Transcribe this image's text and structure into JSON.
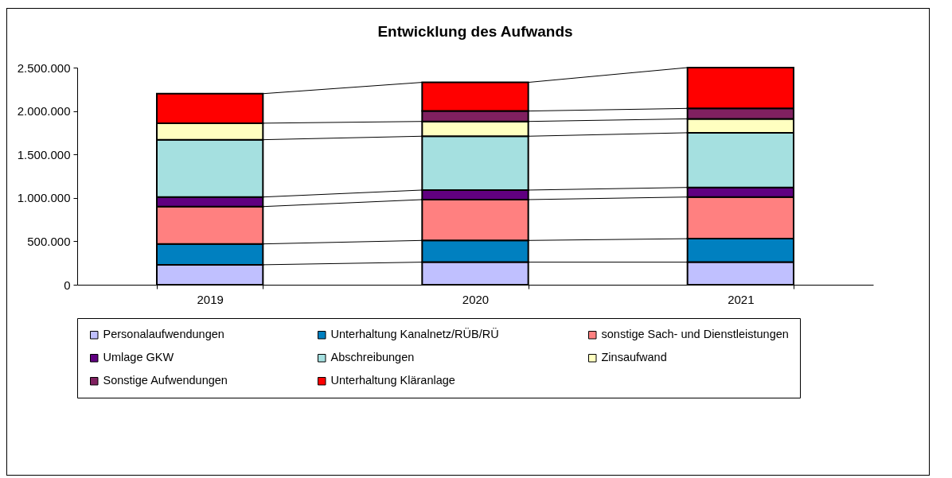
{
  "chart_data": {
    "type": "bar",
    "title": "Entwicklung des Aufwands",
    "stacked": true,
    "categories": [
      "2019",
      "2020",
      "2021"
    ],
    "series": [
      {
        "name": "Personalaufwendungen",
        "color": "#c0c0ff",
        "values": [
          230000,
          260000,
          260000
        ]
      },
      {
        "name": "Unterhaltung Kanalnetz/RÜB/RÜ",
        "color": "#0080c0",
        "values": [
          240000,
          250000,
          270000
        ]
      },
      {
        "name": "sonstige Sach- und Dienstleistungen",
        "color": "#ff8080",
        "values": [
          430000,
          470000,
          480000
        ]
      },
      {
        "name": "Umlage GKW",
        "color": "#600080",
        "values": [
          110000,
          110000,
          110000
        ]
      },
      {
        "name": "Abschreibungen",
        "color": "#a5e0e0",
        "values": [
          660000,
          620000,
          630000
        ]
      },
      {
        "name": "Zinsaufwand",
        "color": "#ffffc0",
        "values": [
          190000,
          170000,
          160000
        ]
      },
      {
        "name": "Sonstige Aufwendungen",
        "color": "#802060",
        "values": [
          null,
          120000,
          120000
        ]
      },
      {
        "name": "Unterhaltung Kläranlage",
        "color": "#ff0000",
        "values": [
          340000,
          330000,
          470000
        ]
      }
    ],
    "ylim": [
      0,
      2500000
    ],
    "yticks": [
      0,
      {
        "value": 500000,
        "label": "500.000"
      },
      {
        "value": 1000000,
        "label": "1.000.000"
      },
      {
        "value": 1500000,
        "label": "1.500.000"
      },
      {
        "value": 2000000,
        "label": "2.000.000"
      },
      {
        "value": 2500000,
        "label": "2.500.000"
      }
    ],
    "grid": false,
    "legend": "bottom"
  }
}
